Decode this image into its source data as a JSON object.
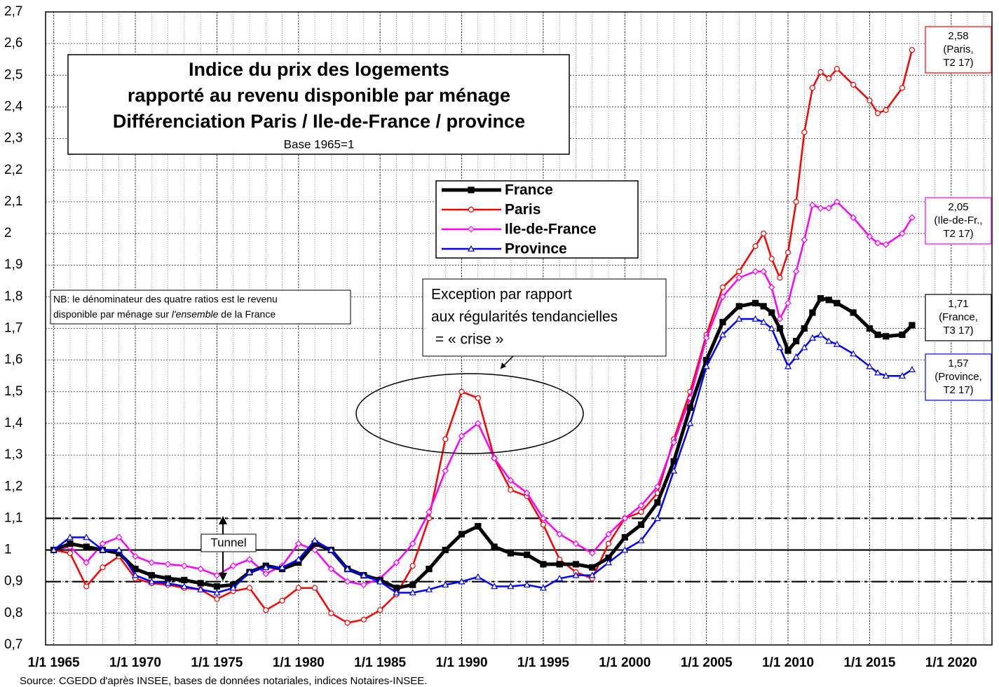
{
  "chart_data": {
    "type": "line",
    "title": [
      "Indice du prix des logements",
      "rapporté au revenu disponible par ménage",
      "Différenciation Paris / Ile-de-France / province"
    ],
    "subtitle": "Base 1965=1",
    "source": "Source: CGEDD d'après INSEE, bases de données notariales, indices Notaires-INSEE.",
    "annotations": {
      "nb": [
        "NB: le dénominateur des quatre ratios est le revenu",
        "disponible par ménage sur ",
        "l'ensemble",
        " de la France"
      ],
      "exception": [
        "Exception par rapport",
        "aux régularités tendancielles",
        " = « crise »"
      ],
      "tunnel": "Tunnel"
    },
    "xlim": [
      1964.5,
      2022.5
    ],
    "ylim": [
      0.7,
      2.7
    ],
    "xticks": [
      {
        "value": 1965,
        "label": "1/1 1965"
      },
      {
        "value": 1970,
        "label": "1/1 1970"
      },
      {
        "value": 1975,
        "label": "1/1 1975"
      },
      {
        "value": 1980,
        "label": "1/1 1980"
      },
      {
        "value": 1985,
        "label": "1/1 1985"
      },
      {
        "value": 1990,
        "label": "1/1 1990"
      },
      {
        "value": 1995,
        "label": "1/1 1995"
      },
      {
        "value": 2000,
        "label": "1/1 2000"
      },
      {
        "value": 2005,
        "label": "1/1 2005"
      },
      {
        "value": 2010,
        "label": "1/1 2010"
      },
      {
        "value": 2015,
        "label": "1/1 2015"
      },
      {
        "value": 2020,
        "label": "1/1 2020"
      }
    ],
    "yticks": [
      {
        "value": 0.7,
        "label": "0,7"
      },
      {
        "value": 0.8,
        "label": "0,8"
      },
      {
        "value": 0.9,
        "label": "0,9"
      },
      1,
      {
        "value": 1.1,
        "label": "1,1"
      },
      {
        "value": 1.2,
        "label": "1,2"
      },
      {
        "value": 1.3,
        "label": "1,3"
      },
      {
        "value": 1.4,
        "label": "1,4"
      },
      {
        "value": 1.5,
        "label": "1,5"
      },
      {
        "value": 1.6,
        "label": "1,6"
      },
      {
        "value": 1.7,
        "label": "1,7"
      },
      {
        "value": 1.8,
        "label": "1,8"
      },
      {
        "value": 1.9,
        "label": "1,9"
      },
      2,
      {
        "value": 2.1,
        "label": "2,1"
      },
      {
        "value": 2.2,
        "label": "2,2"
      },
      {
        "value": 2.3,
        "label": "2,3"
      },
      {
        "value": 2.4,
        "label": "2,4"
      },
      {
        "value": 2.5,
        "label": "2,5"
      },
      {
        "value": 2.6,
        "label": "2,6"
      },
      {
        "value": 2.7,
        "label": "2,7"
      }
    ],
    "grid": true,
    "reference_lines": [
      {
        "value": 1.1,
        "style": "dashdot"
      },
      {
        "value": 1,
        "style": "solid"
      },
      {
        "value": 0.9,
        "style": "dashdot"
      }
    ],
    "x": [
      1965,
      1966,
      1967,
      1968,
      1969,
      1970,
      1971,
      1972,
      1973,
      1974,
      1975,
      1976,
      1977,
      1978,
      1979,
      1980,
      1981,
      1982,
      1983,
      1984,
      1985,
      1986,
      1987,
      1988,
      1989,
      1990,
      1991,
      1992,
      1993,
      1994,
      1995,
      1996,
      1997,
      1998,
      1999,
      2000,
      2001,
      2002,
      2003,
      2004,
      2005,
      2006,
      2007,
      2008,
      2008.5,
      2009,
      2009.5,
      2010,
      2010.5,
      2011,
      2011.5,
      2012,
      2012.5,
      2013,
      2014,
      2015,
      2015.5,
      2016,
      2017,
      2017.6
    ],
    "series": [
      {
        "name": "France",
        "color": "#000000",
        "marker": "square",
        "width": 5,
        "values": [
          1.0,
          1.02,
          1.01,
          1.0,
          0.99,
          0.94,
          0.92,
          0.91,
          0.905,
          0.895,
          0.885,
          0.89,
          0.93,
          0.95,
          0.94,
          0.96,
          1.02,
          1.0,
          0.94,
          0.92,
          0.905,
          0.88,
          0.89,
          0.94,
          1.0,
          1.05,
          1.075,
          1.01,
          0.99,
          0.985,
          0.955,
          0.955,
          0.955,
          0.945,
          0.975,
          1.04,
          1.08,
          1.15,
          1.28,
          1.45,
          1.6,
          1.72,
          1.77,
          1.78,
          1.77,
          1.75,
          1.7,
          1.63,
          1.66,
          1.7,
          1.75,
          1.795,
          1.79,
          1.78,
          1.75,
          1.7,
          1.68,
          1.675,
          1.68,
          1.71
        ],
        "end_label": [
          "1,71",
          "(France,",
          "T3 17)"
        ]
      },
      {
        "name": "Paris",
        "color": "#ff0000",
        "marker": "circle",
        "width": 2.5,
        "values": [
          1.0,
          0.99,
          0.885,
          0.945,
          0.98,
          0.91,
          0.895,
          0.89,
          0.88,
          0.875,
          0.845,
          0.87,
          0.88,
          0.81,
          0.84,
          0.88,
          0.88,
          0.8,
          0.77,
          0.78,
          0.81,
          0.86,
          0.95,
          1.1,
          1.35,
          1.5,
          1.48,
          1.29,
          1.19,
          1.17,
          1.08,
          0.97,
          0.93,
          0.91,
          1.02,
          1.1,
          1.12,
          1.18,
          1.35,
          1.5,
          1.68,
          1.83,
          1.88,
          1.96,
          2.0,
          1.92,
          1.86,
          1.94,
          2.1,
          2.32,
          2.46,
          2.51,
          2.49,
          2.52,
          2.47,
          2.42,
          2.38,
          2.39,
          2.46,
          2.58
        ],
        "end_label": [
          "2,58",
          "(Paris,",
          "T2 17)"
        ]
      },
      {
        "name": "Ile-de-France",
        "color": "#ff00ff",
        "marker": "diamond",
        "width": 2.5,
        "values": [
          1.0,
          1.01,
          0.96,
          1.02,
          1.04,
          0.98,
          0.96,
          0.955,
          0.95,
          0.94,
          0.92,
          0.95,
          0.97,
          0.925,
          0.95,
          1.02,
          1.0,
          0.94,
          0.9,
          0.89,
          0.91,
          0.96,
          1.02,
          1.12,
          1.25,
          1.36,
          1.4,
          1.29,
          1.22,
          1.18,
          1.1,
          1.05,
          1.02,
          0.99,
          1.05,
          1.1,
          1.14,
          1.2,
          1.34,
          1.48,
          1.67,
          1.8,
          1.86,
          1.88,
          1.88,
          1.83,
          1.73,
          1.78,
          1.88,
          1.98,
          2.09,
          2.08,
          2.08,
          2.1,
          2.05,
          1.99,
          1.97,
          1.965,
          2.0,
          2.05
        ],
        "end_label": [
          "2,05",
          "(Ile-de-Fr.,",
          "T2 17)"
        ]
      },
      {
        "name": "Province",
        "color": "#0000ff",
        "marker": "triangle",
        "width": 2.5,
        "values": [
          1.0,
          1.04,
          1.04,
          1.0,
          1.0,
          0.92,
          0.9,
          0.895,
          0.885,
          0.875,
          0.865,
          0.88,
          0.93,
          0.945,
          0.945,
          0.97,
          1.03,
          1.0,
          0.94,
          0.92,
          0.9,
          0.865,
          0.865,
          0.875,
          0.89,
          0.9,
          0.915,
          0.885,
          0.885,
          0.89,
          0.88,
          0.91,
          0.92,
          0.92,
          0.96,
          1.0,
          1.03,
          1.1,
          1.25,
          1.4,
          1.58,
          1.68,
          1.73,
          1.73,
          1.72,
          1.7,
          1.64,
          1.58,
          1.61,
          1.64,
          1.67,
          1.68,
          1.66,
          1.65,
          1.62,
          1.58,
          1.56,
          1.55,
          1.55,
          1.57
        ],
        "end_label": [
          "1,57",
          "(Province,",
          "T2 17)"
        ]
      }
    ]
  }
}
